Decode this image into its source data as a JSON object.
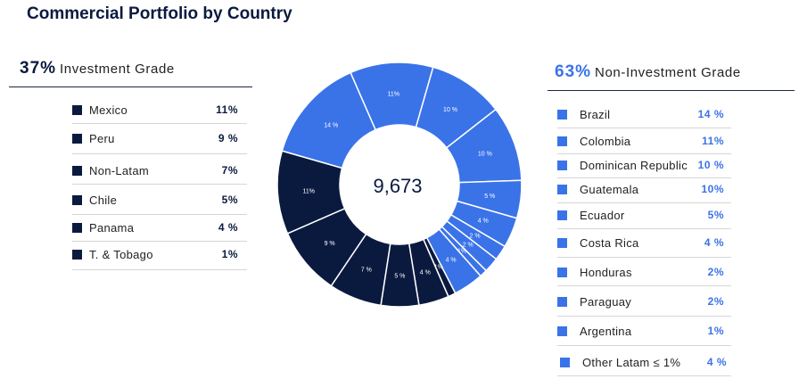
{
  "title": "Commercial Portfolio by Country",
  "investment_grade": {
    "pct": "37%",
    "label": "Investment Grade",
    "items": [
      {
        "name": "Mexico",
        "value": "11%"
      },
      {
        "name": "Peru",
        "value": "9 %"
      },
      {
        "name": "Non-Latam",
        "value": "7%"
      },
      {
        "name": "Chile",
        "value": "5%"
      },
      {
        "name": "Panama",
        "value": "4 %"
      },
      {
        "name": "T. & Tobago",
        "value": "1%"
      }
    ]
  },
  "non_investment_grade": {
    "pct": "63%",
    "label": "Non-Investment Grade",
    "items": [
      {
        "name": "Brazil",
        "value": "14 %"
      },
      {
        "name": "Colombia",
        "value": "11%"
      },
      {
        "name": "Dominican Republic",
        "value": "10 %"
      },
      {
        "name": "Guatemala",
        "value": "10%"
      },
      {
        "name": "Ecuador",
        "value": "5%"
      },
      {
        "name": "Costa Rica",
        "value": "4 %"
      },
      {
        "name": "Honduras",
        "value": "2%"
      },
      {
        "name": "Paraguay",
        "value": "2%"
      },
      {
        "name": "Argentina",
        "value": "1%"
      },
      {
        "name": "Other Latam ≤ 1%",
        "value": "4 %"
      }
    ]
  },
  "colors": {
    "investment_grade": "#0a1a3f",
    "non_investment_grade": "#3a73e8"
  },
  "chart_data": {
    "type": "pie",
    "style": "donut",
    "center_label": "9,673",
    "slices": [
      {
        "name": "Brazil",
        "value": 14,
        "label": "14 %",
        "group": "non_investment_grade"
      },
      {
        "name": "Colombia",
        "value": 11,
        "label": "11%",
        "group": "non_investment_grade"
      },
      {
        "name": "Dominican Republic",
        "value": 10,
        "label": "10 %",
        "group": "non_investment_grade"
      },
      {
        "name": "Guatemala",
        "value": 10,
        "label": "10 %",
        "group": "non_investment_grade"
      },
      {
        "name": "Ecuador",
        "value": 5,
        "label": "5 %",
        "group": "non_investment_grade"
      },
      {
        "name": "Costa Rica",
        "value": 4,
        "label": "4 %",
        "group": "non_investment_grade"
      },
      {
        "name": "Honduras",
        "value": 2,
        "label": "2 %",
        "group": "non_investment_grade"
      },
      {
        "name": "Paraguay",
        "value": 2,
        "label": "2 %",
        "group": "non_investment_grade"
      },
      {
        "name": "Argentina",
        "value": 1,
        "label": "1%",
        "group": "non_investment_grade"
      },
      {
        "name": "Other Latam ≤ 1%",
        "value": 4,
        "label": "4 %",
        "group": "non_investment_grade"
      },
      {
        "name": "T. & Tobago",
        "value": 1,
        "label": "1%",
        "group": "investment_grade"
      },
      {
        "name": "Panama",
        "value": 4,
        "label": "4 %",
        "group": "investment_grade"
      },
      {
        "name": "Chile",
        "value": 5,
        "label": "5 %",
        "group": "investment_grade"
      },
      {
        "name": "Non-Latam",
        "value": 7,
        "label": "7 %",
        "group": "investment_grade"
      },
      {
        "name": "Peru",
        "value": 9,
        "label": "9 %",
        "group": "investment_grade"
      },
      {
        "name": "Mexico",
        "value": 11,
        "label": "11%",
        "group": "investment_grade"
      }
    ]
  }
}
